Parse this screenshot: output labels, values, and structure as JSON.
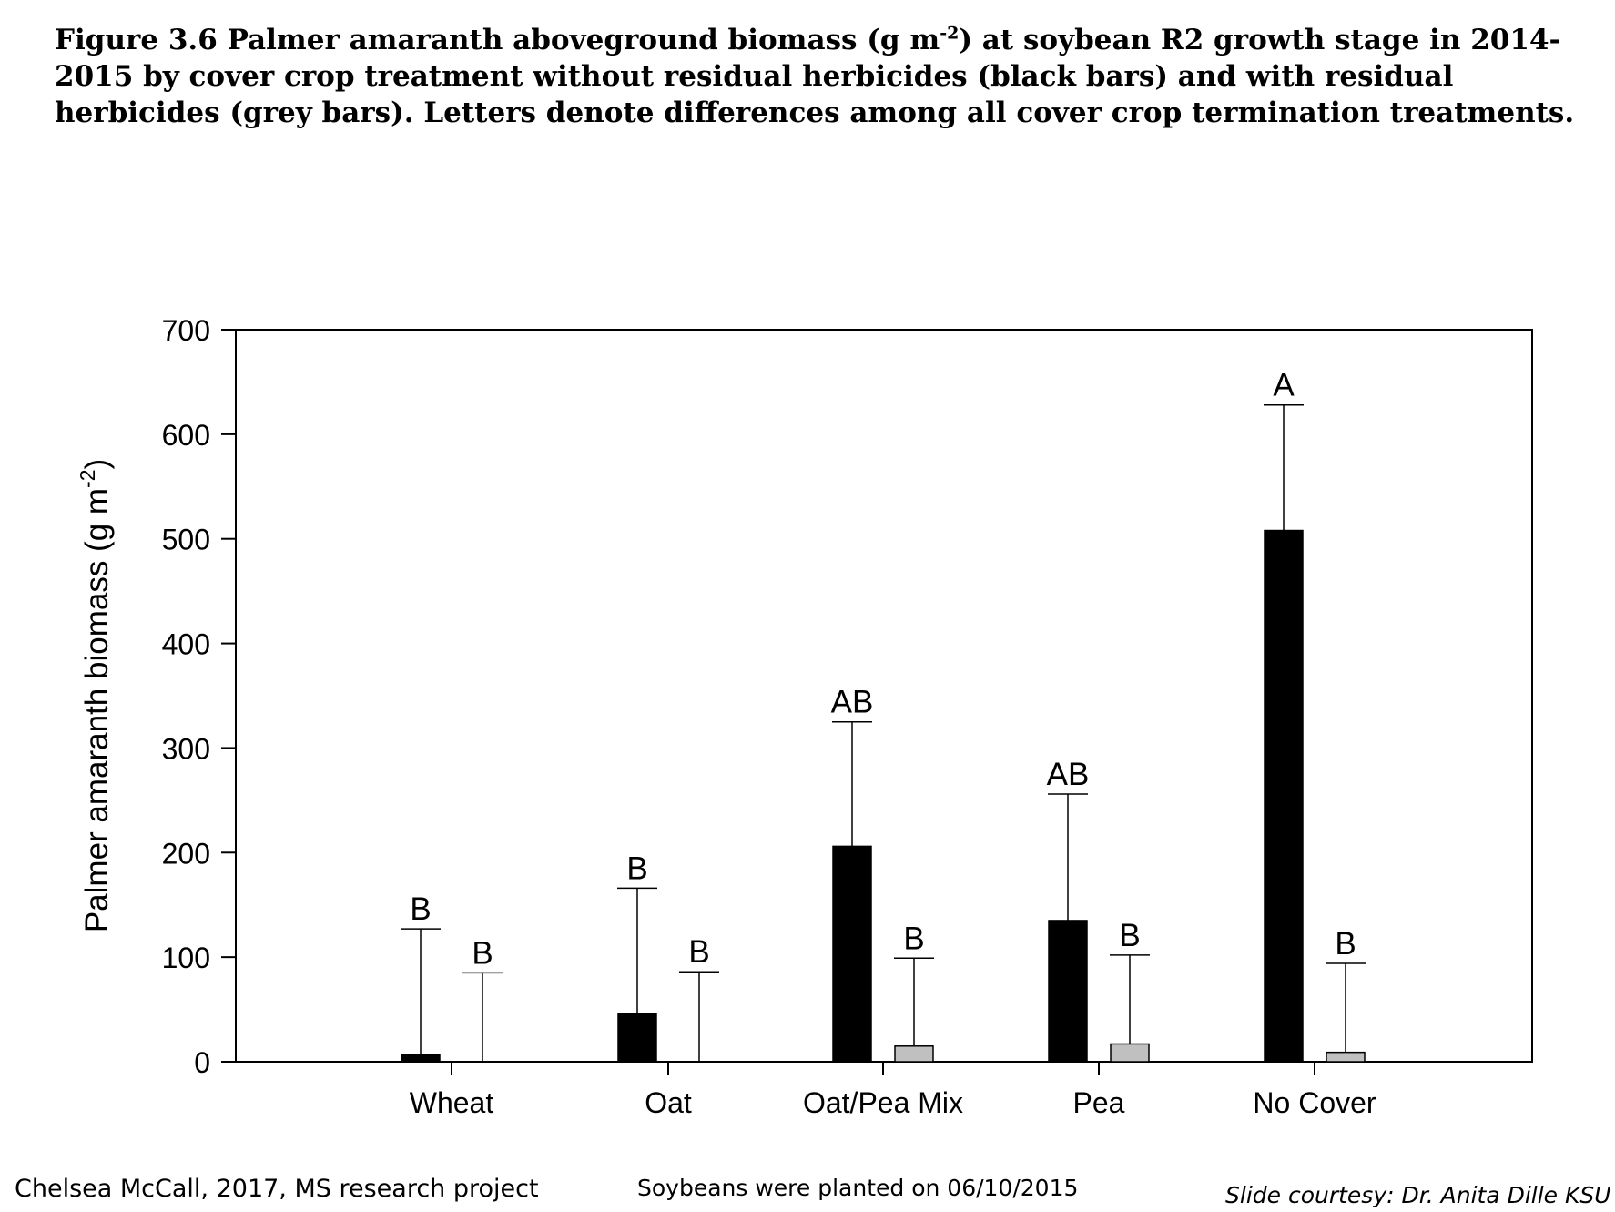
{
  "caption": {
    "part1": "Figure 3.6 Palmer amaranth aboveground biomass (g m",
    "superscript": "-2",
    "part2": ") at soybean R2 growth stage in 2014-2015 by cover crop treatment without residual herbicides (black bars) and with residual herbicides (grey bars).  Letters denote differences among all cover crop termination treatments."
  },
  "chart_data": {
    "type": "bar",
    "ylabel": "Palmer amaranth biomass (g m",
    "ylabel_superscript": "-2",
    "ylabel_tail": ")",
    "ylim": [
      0,
      700
    ],
    "yticks": [
      "0",
      "100",
      "200",
      "300",
      "400",
      "500",
      "600",
      "700"
    ],
    "categories": [
      "Wheat",
      "Oat",
      "Oat/Pea Mix",
      "Pea",
      "No Cover"
    ],
    "legend": "none",
    "grid": false,
    "series": [
      {
        "color": "#000000",
        "values": [
          7,
          46,
          206,
          135,
          508
        ],
        "error_upper": [
          127,
          166,
          325,
          256,
          628
        ],
        "letters": [
          "B",
          "B",
          "AB",
          "AB",
          "A"
        ]
      },
      {
        "color": "#c0c0c0",
        "values": [
          0,
          0,
          15,
          17,
          9
        ],
        "error_upper": [
          85,
          86,
          99,
          102,
          94
        ],
        "letters": [
          "B",
          "B",
          "B",
          "B",
          "B"
        ]
      }
    ]
  },
  "footer": {
    "left": "Chelsea McCall, 2017, MS research project",
    "center": "Soybeans were planted on 06/10/2015",
    "right": "Slide courtesy: Dr. Anita Dille KSU"
  }
}
